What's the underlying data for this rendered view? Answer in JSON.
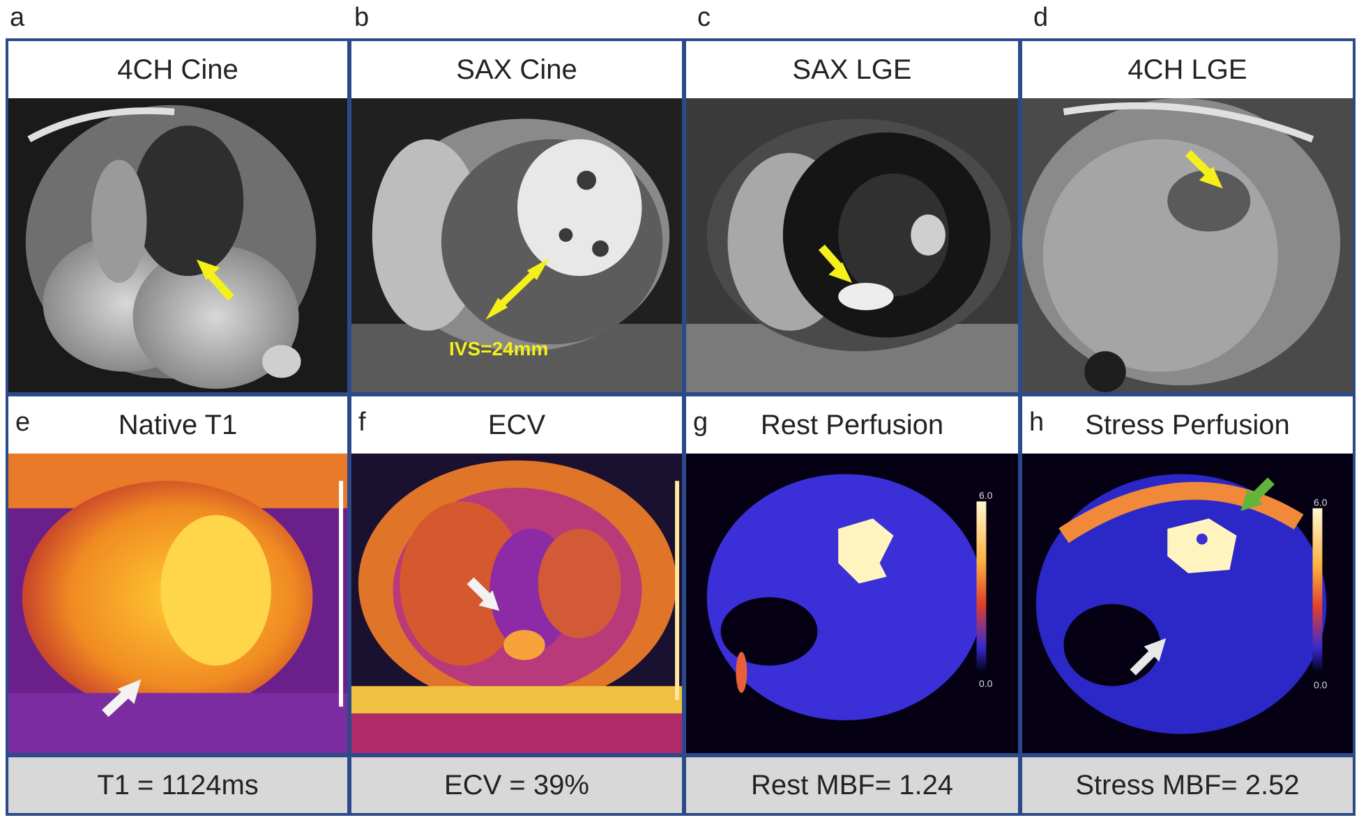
{
  "top_letters": [
    "a",
    "b",
    "c",
    "d"
  ],
  "panels": {
    "a": {
      "letter": "a",
      "title": "4CH Cine"
    },
    "b": {
      "letter": "b",
      "title": "SAX Cine",
      "annotation": "IVS=24mm"
    },
    "c": {
      "letter": "c",
      "title": "SAX LGE"
    },
    "d": {
      "letter": "d",
      "title": "4CH LGE"
    },
    "e": {
      "letter": "e",
      "title": "Native T1",
      "footer": "T1 = 1124ms"
    },
    "f": {
      "letter": "f",
      "title": "ECV",
      "footer": "ECV = 39%"
    },
    "g": {
      "letter": "g",
      "title": "Rest Perfusion",
      "footer": "Rest MBF= 1.24",
      "scale_max": "6.0",
      "scale_min": "0.0"
    },
    "h": {
      "letter": "h",
      "title": "Stress Perfusion",
      "footer": "Stress MBF= 2.52",
      "scale_max": "6.0",
      "scale_min": "0.0"
    }
  },
  "colors": {
    "border": "#2c4a8a",
    "arrow_yellow": "#f5ef1a",
    "arrow_white": "#f2f2f2",
    "arrow_green": "#5fb63a",
    "footer_bg": "#d8d8d8"
  }
}
